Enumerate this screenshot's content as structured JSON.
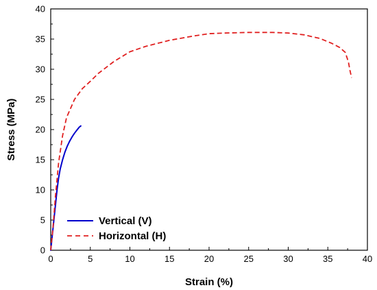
{
  "chart_data": {
    "type": "line",
    "xlabel": "Strain (%)",
    "ylabel": "Stress (MPa)",
    "xlim": [
      0,
      40
    ],
    "ylim": [
      0,
      40
    ],
    "x_ticks": [
      0,
      5,
      10,
      15,
      20,
      25,
      30,
      35,
      40
    ],
    "y_ticks": [
      0,
      5,
      10,
      15,
      20,
      25,
      30,
      35,
      40
    ],
    "grid": false,
    "legend_position": "bottom-left",
    "series": [
      {
        "name": "Vertical (V)",
        "color": "#0000cc",
        "line_style": "solid",
        "x": [
          0,
          0.2,
          0.4,
          0.6,
          0.8,
          1.0,
          1.2,
          1.5,
          1.8,
          2.1,
          2.4,
          2.7,
          3.0,
          3.3,
          3.6,
          3.8
        ],
        "y": [
          0,
          2.5,
          5.0,
          7.5,
          10.0,
          12.0,
          13.5,
          15.0,
          16.3,
          17.3,
          18.1,
          18.8,
          19.4,
          19.9,
          20.4,
          20.6
        ]
      },
      {
        "name": "Horizontal (H)",
        "color": "#e02020",
        "line_style": "dashed",
        "x": [
          0,
          0.3,
          0.6,
          1.0,
          1.5,
          2.0,
          3.0,
          4.0,
          5.0,
          6.0,
          8.0,
          10.0,
          12.0,
          15.0,
          18.0,
          20.0,
          22.0,
          25.0,
          28.0,
          30.0,
          32.0,
          34.0,
          35.5,
          36.5,
          37.2,
          37.6,
          37.8,
          38.0
        ],
        "y": [
          0,
          4.0,
          9.0,
          14.5,
          19.0,
          22.0,
          25.0,
          26.8,
          28.0,
          29.3,
          31.3,
          32.9,
          33.8,
          34.8,
          35.5,
          35.9,
          36.0,
          36.1,
          36.1,
          36.0,
          35.7,
          35.1,
          34.3,
          33.6,
          32.8,
          31.2,
          29.8,
          28.6
        ]
      }
    ]
  }
}
